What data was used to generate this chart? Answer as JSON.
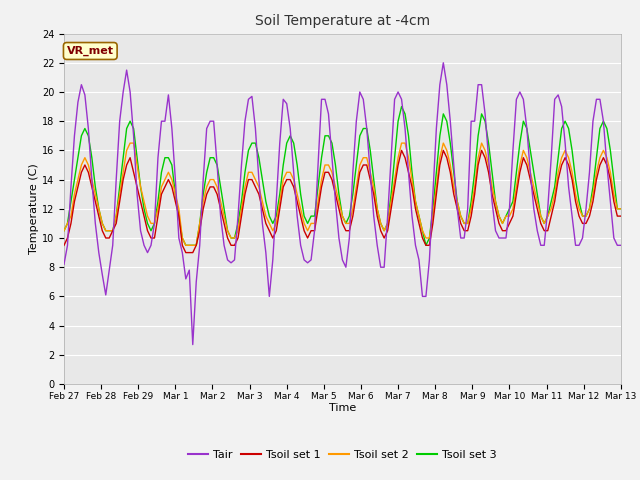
{
  "title": "Soil Temperature at -4cm",
  "xlabel": "Time",
  "ylabel": "Temperature (C)",
  "ylim": [
    0,
    24
  ],
  "yticks": [
    0,
    2,
    4,
    6,
    8,
    10,
    12,
    14,
    16,
    18,
    20,
    22,
    24
  ],
  "xtick_labels": [
    "Feb 27",
    "Feb 28",
    "Feb 29",
    "Mar 1",
    "Mar 2",
    "Mar 3",
    "Mar 4",
    "Mar 5",
    "Mar 6",
    "Mar 7",
    "Mar 8",
    "Mar 9",
    "Mar 10",
    "Mar 11",
    "Mar 12",
    "Mar 13"
  ],
  "annotation_text": "VR_met",
  "annotation_bg": "#ffffcc",
  "annotation_border": "#996600",
  "legend_labels": [
    "Tair",
    "Tsoil set 1",
    "Tsoil set 2",
    "Tsoil set 3"
  ],
  "colors": {
    "Tair": "#9933cc",
    "Tsoil set 1": "#cc0000",
    "Tsoil set 2": "#ff9900",
    "Tsoil set 3": "#00cc00"
  },
  "fig_bg": "#f2f2f2",
  "plot_bg": "#e8e8e8",
  "title_color": "#333333",
  "Tair": [
    8.2,
    9.5,
    13.5,
    17.0,
    19.3,
    20.5,
    19.8,
    17.5,
    14.0,
    11.0,
    9.0,
    7.5,
    6.1,
    7.8,
    9.5,
    14.0,
    18.0,
    20.0,
    21.5,
    20.0,
    17.0,
    13.0,
    10.5,
    9.5,
    9.0,
    9.5,
    11.0,
    15.5,
    18.0,
    18.0,
    19.8,
    17.5,
    14.0,
    10.0,
    9.0,
    7.2,
    7.8,
    2.7,
    7.0,
    9.5,
    14.0,
    17.5,
    18.0,
    18.0,
    15.0,
    11.5,
    9.5,
    8.5,
    8.3,
    8.5,
    11.5,
    15.0,
    18.0,
    19.5,
    19.7,
    17.5,
    14.0,
    11.0,
    9.0,
    6.0,
    8.5,
    12.5,
    16.5,
    19.5,
    19.2,
    17.5,
    14.5,
    11.5,
    9.5,
    8.5,
    8.3,
    8.5,
    10.5,
    15.0,
    19.5,
    19.5,
    18.5,
    15.5,
    12.5,
    10.0,
    8.5,
    8.0,
    10.0,
    14.5,
    18.0,
    20.0,
    19.5,
    17.5,
    14.5,
    11.5,
    9.5,
    8.0,
    8.0,
    11.5,
    15.5,
    19.5,
    20.0,
    19.5,
    17.5,
    14.5,
    11.5,
    9.5,
    8.5,
    6.0,
    6.0,
    8.5,
    13.0,
    17.5,
    20.5,
    22.0,
    20.5,
    18.0,
    15.0,
    12.0,
    10.0,
    10.0,
    12.0,
    18.0,
    18.0,
    20.5,
    20.5,
    18.5,
    15.5,
    12.5,
    10.5,
    10.0,
    10.0,
    10.0,
    12.0,
    16.0,
    19.5,
    20.0,
    19.5,
    17.5,
    14.5,
    12.0,
    10.5,
    9.5,
    9.5,
    12.0,
    15.5,
    19.5,
    19.8,
    19.0,
    16.5,
    13.5,
    11.5,
    9.5,
    9.5,
    10.0,
    12.0,
    14.5,
    18.0,
    19.5,
    19.5,
    18.0,
    15.0,
    12.5,
    10.0,
    9.5,
    9.5
  ],
  "Tsoil1": [
    9.5,
    10.0,
    11.0,
    12.5,
    13.5,
    14.5,
    15.0,
    14.5,
    13.5,
    12.5,
    11.5,
    10.5,
    10.0,
    10.0,
    10.5,
    11.0,
    12.5,
    14.0,
    15.0,
    15.5,
    14.5,
    13.5,
    12.5,
    11.5,
    10.5,
    10.0,
    10.0,
    11.5,
    13.0,
    13.5,
    14.0,
    13.5,
    12.5,
    11.5,
    9.5,
    9.0,
    9.0,
    9.0,
    9.5,
    10.5,
    12.0,
    13.0,
    13.5,
    13.5,
    13.0,
    12.0,
    11.0,
    10.0,
    9.5,
    9.5,
    10.0,
    11.5,
    13.0,
    14.0,
    14.0,
    13.5,
    13.0,
    12.0,
    11.0,
    10.5,
    10.0,
    10.5,
    12.0,
    13.5,
    14.0,
    14.0,
    13.5,
    12.5,
    11.5,
    10.5,
    10.0,
    10.5,
    10.5,
    12.0,
    13.5,
    14.5,
    14.5,
    14.0,
    13.0,
    12.0,
    11.0,
    10.5,
    10.5,
    11.5,
    13.0,
    14.5,
    15.0,
    15.0,
    14.0,
    13.0,
    11.5,
    10.5,
    10.0,
    10.5,
    12.0,
    13.5,
    15.0,
    16.0,
    15.5,
    14.5,
    13.5,
    12.0,
    11.0,
    10.0,
    9.5,
    9.5,
    11.0,
    13.0,
    15.0,
    16.0,
    15.5,
    14.5,
    13.0,
    12.0,
    11.0,
    10.5,
    10.5,
    11.5,
    13.0,
    15.0,
    16.0,
    15.5,
    14.5,
    13.0,
    12.0,
    11.0,
    10.5,
    10.5,
    11.0,
    11.5,
    13.0,
    14.5,
    15.5,
    15.0,
    14.0,
    13.0,
    12.0,
    11.0,
    10.5,
    10.5,
    11.5,
    12.5,
    14.0,
    15.0,
    15.5,
    15.0,
    14.0,
    12.5,
    11.5,
    11.0,
    11.0,
    11.5,
    12.5,
    14.0,
    15.0,
    15.5,
    15.0,
    14.0,
    12.5,
    11.5,
    11.5
  ],
  "Tsoil2": [
    10.5,
    11.0,
    11.5,
    13.0,
    14.0,
    15.0,
    15.5,
    15.0,
    14.0,
    13.0,
    12.0,
    11.0,
    10.5,
    10.5,
    10.5,
    11.5,
    13.0,
    14.5,
    16.0,
    16.5,
    16.5,
    15.0,
    13.5,
    12.5,
    11.5,
    11.0,
    11.0,
    12.0,
    13.5,
    14.0,
    14.5,
    14.0,
    13.0,
    12.0,
    10.0,
    9.5,
    9.5,
    9.5,
    9.5,
    11.0,
    12.5,
    13.5,
    14.0,
    14.0,
    13.5,
    12.5,
    11.5,
    10.5,
    10.0,
    10.0,
    10.5,
    12.0,
    13.5,
    14.5,
    14.5,
    14.0,
    13.5,
    12.5,
    11.5,
    11.0,
    10.5,
    11.0,
    12.5,
    14.0,
    14.5,
    14.5,
    14.0,
    13.0,
    12.0,
    11.0,
    10.5,
    11.0,
    11.0,
    12.5,
    14.0,
    15.0,
    15.0,
    14.5,
    13.5,
    12.5,
    11.5,
    11.0,
    11.0,
    12.0,
    13.5,
    15.0,
    15.5,
    15.5,
    14.5,
    13.5,
    12.0,
    11.0,
    10.5,
    11.0,
    12.5,
    14.0,
    15.5,
    16.5,
    16.5,
    15.5,
    14.0,
    12.5,
    11.5,
    10.5,
    10.0,
    10.0,
    11.5,
    13.5,
    15.5,
    16.5,
    16.0,
    15.0,
    13.5,
    12.5,
    11.5,
    11.0,
    11.0,
    12.0,
    13.5,
    15.5,
    16.5,
    16.0,
    15.0,
    13.5,
    12.5,
    11.5,
    11.0,
    11.5,
    11.5,
    12.0,
    13.5,
    15.0,
    16.0,
    15.5,
    14.5,
    13.5,
    12.5,
    11.5,
    11.0,
    11.5,
    12.0,
    13.0,
    14.5,
    15.5,
    16.0,
    15.5,
    14.5,
    13.0,
    12.0,
    11.5,
    11.5,
    12.0,
    13.0,
    14.5,
    15.5,
    16.0,
    15.5,
    14.5,
    13.0,
    12.0,
    12.0
  ],
  "Tsoil3": [
    10.5,
    11.0,
    12.5,
    14.0,
    15.5,
    17.0,
    17.5,
    17.0,
    15.5,
    13.5,
    12.0,
    11.0,
    10.5,
    10.5,
    10.5,
    11.5,
    13.5,
    15.5,
    17.5,
    18.0,
    17.5,
    15.5,
    13.5,
    12.0,
    11.0,
    10.5,
    11.0,
    12.5,
    14.5,
    15.5,
    15.5,
    15.0,
    13.0,
    11.5,
    10.0,
    9.5,
    9.5,
    9.5,
    9.5,
    11.0,
    13.0,
    14.5,
    15.5,
    15.5,
    15.0,
    13.5,
    12.0,
    10.5,
    10.0,
    10.0,
    11.0,
    12.5,
    14.5,
    16.0,
    16.5,
    16.5,
    15.5,
    14.0,
    12.5,
    11.5,
    11.0,
    11.5,
    13.0,
    15.0,
    16.5,
    17.0,
    16.5,
    15.0,
    13.0,
    11.5,
    11.0,
    11.5,
    11.5,
    13.5,
    15.5,
    17.0,
    17.0,
    16.5,
    15.0,
    13.0,
    11.5,
    11.0,
    11.5,
    13.0,
    15.0,
    17.0,
    17.5,
    17.5,
    16.0,
    14.0,
    12.0,
    11.0,
    10.5,
    11.0,
    13.0,
    15.5,
    18.0,
    19.0,
    18.5,
    17.0,
    14.5,
    12.5,
    11.5,
    10.5,
    9.5,
    10.0,
    12.0,
    14.5,
    17.0,
    18.5,
    18.0,
    16.5,
    14.5,
    12.5,
    11.5,
    11.0,
    11.0,
    12.5,
    14.5,
    17.0,
    18.5,
    18.0,
    16.5,
    14.5,
    12.5,
    11.5,
    11.0,
    11.5,
    12.0,
    12.5,
    14.5,
    16.5,
    18.0,
    17.5,
    16.0,
    14.5,
    13.0,
    11.5,
    11.0,
    11.5,
    12.5,
    13.5,
    15.5,
    17.5,
    18.0,
    17.5,
    16.0,
    14.0,
    12.5,
    11.5,
    11.5,
    12.0,
    13.5,
    15.5,
    17.5,
    18.0,
    17.5,
    16.0,
    14.0,
    12.0,
    12.0
  ]
}
